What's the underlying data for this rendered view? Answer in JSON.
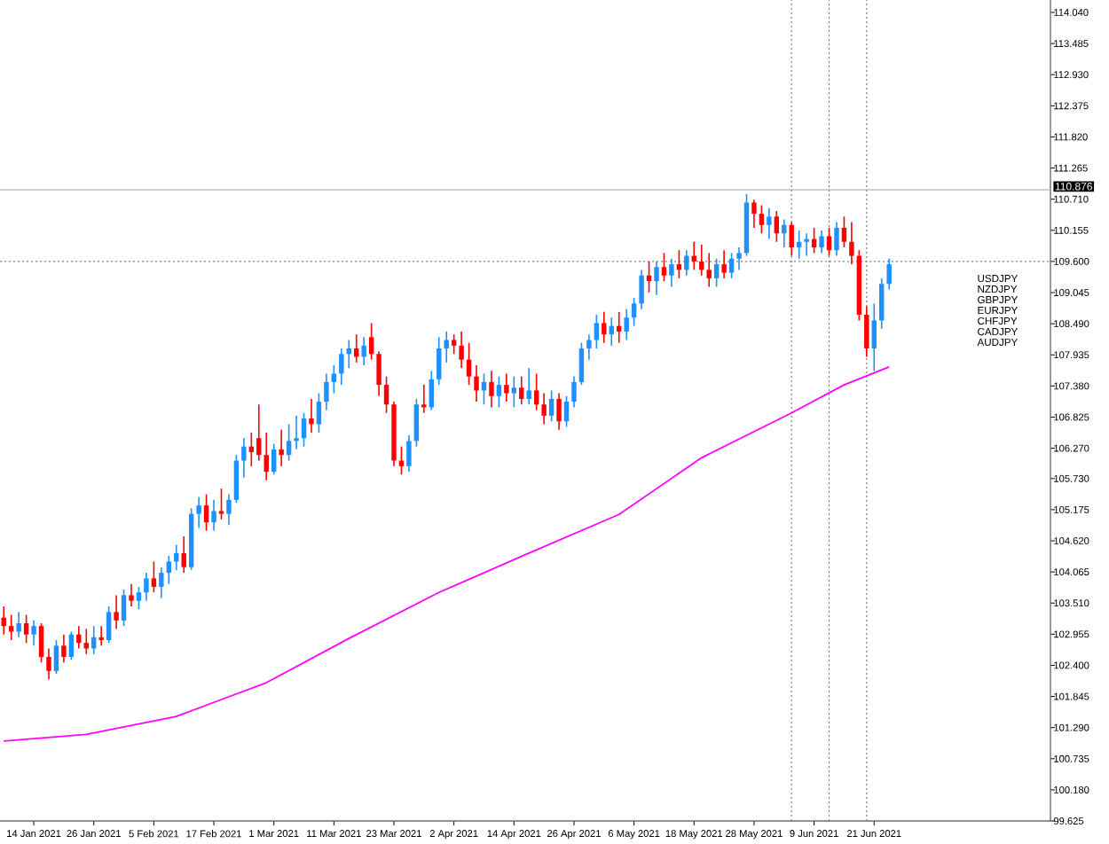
{
  "chart_data": {
    "type": "candlestick",
    "categories": [
      null,
      null,
      null,
      null,
      "14 Jan 2021",
      null,
      null,
      null,
      null,
      null,
      null,
      null,
      "26 Jan 2021",
      null,
      null,
      null,
      null,
      null,
      null,
      null,
      "5 Feb 2021",
      null,
      null,
      null,
      null,
      null,
      null,
      null,
      "17 Feb 2021",
      null,
      null,
      null,
      null,
      null,
      null,
      null,
      "1 Mar 2021",
      null,
      null,
      null,
      null,
      null,
      null,
      null,
      "11 Mar 2021",
      null,
      null,
      null,
      null,
      null,
      null,
      null,
      "23 Mar 2021",
      null,
      null,
      null,
      null,
      null,
      null,
      null,
      "2 Apr 2021",
      null,
      null,
      null,
      null,
      null,
      null,
      null,
      "14 Apr 2021",
      null,
      null,
      null,
      null,
      null,
      null,
      null,
      "26 Apr 2021",
      null,
      null,
      null,
      null,
      null,
      null,
      null,
      "6 May 2021",
      null,
      null,
      null,
      null,
      null,
      null,
      null,
      "18 May 2021",
      null,
      null,
      null,
      null,
      null,
      null,
      null,
      "28 May 2021",
      null,
      null,
      null,
      null,
      null,
      null,
      null,
      "9 Jun 2021",
      null,
      null,
      null,
      null,
      null,
      null,
      null,
      "21 Jun 2021",
      null,
      null,
      null,
      null,
      null,
      null,
      null,
      null,
      null,
      null,
      null,
      null,
      null,
      null,
      null,
      null,
      null,
      null,
      null,
      null,
      null,
      null,
      null
    ],
    "ylim": [
      99.625,
      114.26
    ],
    "yticks": [
      99.625,
      {
        "value": 100.18,
        "label": "100.180"
      },
      100.735,
      {
        "value": 101.29,
        "label": "101.290"
      },
      101.845,
      {
        "value": 102.4,
        "label": "102.400"
      },
      102.955,
      {
        "value": 103.51,
        "label": "103.510"
      },
      104.065,
      {
        "value": 104.62,
        "label": "104.620"
      },
      105.175,
      {
        "value": 105.73,
        "label": "105.730"
      },
      {
        "value": 106.27,
        "label": "106.270"
      },
      106.825,
      {
        "value": 107.38,
        "label": "107.380"
      },
      107.935,
      {
        "value": 108.49,
        "label": "108.490"
      },
      109.045,
      {
        "value": 109.6,
        "label": "109.600"
      },
      110.155,
      {
        "value": 110.71,
        "label": "110.710"
      },
      111.265,
      {
        "value": 111.82,
        "label": "111.820"
      },
      112.375,
      {
        "value": 112.93,
        "label": "112.930"
      },
      113.485,
      {
        "value": 114.04,
        "label": "114.040"
      }
    ],
    "ref_lines": [
      {
        "axis": "y",
        "value": 110.876,
        "label": "110.876",
        "color": "#b4b4b4",
        "line_style": "solid"
      },
      {
        "axis": "y",
        "value": 109.6,
        "color": "#808080",
        "line_style": "dotted"
      }
    ],
    "annotations": [
      "USDJPY",
      "NZDJPY",
      "GBPJPY",
      "EURJPY",
      "CHFJPY",
      "CADJPY",
      "AUDJPY"
    ],
    "series": [
      {
        "ohlc": [
          [
            103.25,
            103.45,
            102.95,
            103.1
          ],
          [
            103.1,
            103.3,
            102.85,
            103.0
          ],
          [
            103.0,
            103.35,
            102.9,
            103.15
          ],
          [
            103.15,
            103.3,
            102.8,
            102.95
          ],
          [
            102.95,
            103.2,
            102.75,
            103.1
          ],
          [
            103.1,
            103.15,
            102.45,
            102.55
          ],
          [
            102.55,
            102.7,
            102.15,
            102.3
          ],
          [
            102.3,
            102.85,
            102.25,
            102.75
          ],
          [
            102.75,
            102.95,
            102.45,
            102.55
          ],
          [
            102.55,
            103.0,
            102.5,
            102.95
          ],
          [
            102.95,
            103.1,
            102.7,
            102.8
          ],
          [
            102.8,
            103.05,
            102.6,
            102.7
          ],
          [
            102.7,
            103.1,
            102.6,
            102.9
          ],
          [
            102.9,
            103.1,
            102.75,
            102.85
          ],
          [
            102.85,
            103.45,
            102.8,
            103.35
          ],
          [
            103.35,
            103.65,
            103.05,
            103.2
          ],
          [
            103.2,
            103.75,
            103.1,
            103.65
          ],
          [
            103.65,
            103.85,
            103.45,
            103.55
          ],
          [
            103.55,
            103.8,
            103.4,
            103.7
          ],
          [
            103.7,
            104.05,
            103.55,
            103.95
          ],
          [
            103.95,
            104.25,
            103.7,
            103.8
          ],
          [
            103.8,
            104.15,
            103.6,
            104.05
          ],
          [
            104.05,
            104.35,
            103.85,
            104.25
          ],
          [
            104.25,
            104.55,
            104.1,
            104.4
          ],
          [
            104.4,
            104.7,
            104.05,
            104.15
          ],
          [
            104.15,
            105.2,
            104.1,
            105.1
          ],
          [
            105.1,
            105.4,
            104.85,
            105.25
          ],
          [
            105.25,
            105.45,
            104.8,
            104.95
          ],
          [
            104.95,
            105.35,
            104.8,
            105.15
          ],
          [
            105.15,
            105.55,
            105.0,
            105.1
          ],
          [
            105.1,
            105.45,
            104.9,
            105.35
          ],
          [
            105.35,
            106.15,
            105.3,
            106.05
          ],
          [
            106.05,
            106.45,
            105.75,
            106.3
          ],
          [
            106.3,
            106.55,
            105.95,
            106.2
          ],
          [
            106.45,
            107.05,
            106.05,
            106.15
          ],
          [
            106.15,
            106.55,
            105.7,
            105.85
          ],
          [
            105.85,
            106.35,
            105.8,
            106.25
          ],
          [
            106.25,
            106.6,
            105.95,
            106.15
          ],
          [
            106.15,
            106.7,
            106.05,
            106.4
          ],
          [
            106.4,
            106.85,
            106.25,
            106.45
          ],
          [
            106.45,
            106.9,
            106.3,
            106.8
          ],
          [
            106.8,
            107.15,
            106.55,
            106.7
          ],
          [
            106.7,
            107.25,
            106.55,
            107.1
          ],
          [
            107.1,
            107.6,
            106.95,
            107.45
          ],
          [
            107.45,
            107.75,
            107.25,
            107.6
          ],
          [
            107.6,
            108.05,
            107.4,
            107.95
          ],
          [
            107.95,
            108.2,
            107.7,
            108.05
          ],
          [
            108.05,
            108.3,
            107.8,
            107.9
          ],
          [
            107.9,
            108.25,
            107.75,
            108.1
          ],
          [
            108.25,
            108.5,
            107.85,
            107.95
          ],
          [
            107.95,
            108.0,
            107.2,
            107.4
          ],
          [
            107.4,
            107.55,
            106.9,
            107.05
          ],
          [
            107.05,
            107.1,
            105.95,
            106.05
          ],
          [
            106.05,
            106.3,
            105.8,
            105.95
          ],
          [
            105.95,
            106.5,
            105.85,
            106.4
          ],
          [
            106.4,
            107.15,
            106.3,
            107.05
          ],
          [
            107.05,
            107.4,
            106.9,
            107.0
          ],
          [
            107.0,
            107.65,
            106.95,
            107.5
          ],
          [
            107.5,
            108.25,
            107.4,
            108.05
          ],
          [
            108.05,
            108.35,
            107.8,
            108.2
          ],
          [
            108.2,
            108.3,
            107.95,
            108.1
          ],
          [
            108.1,
            108.35,
            107.7,
            107.85
          ],
          [
            107.85,
            108.15,
            107.4,
            107.55
          ],
          [
            107.55,
            107.75,
            107.1,
            107.3
          ],
          [
            107.3,
            107.6,
            107.05,
            107.45
          ],
          [
            107.45,
            107.65,
            107.0,
            107.2
          ],
          [
            107.2,
            107.55,
            107.0,
            107.4
          ],
          [
            107.4,
            107.6,
            107.1,
            107.25
          ],
          [
            107.25,
            107.55,
            107.0,
            107.35
          ],
          [
            107.35,
            107.55,
            107.05,
            107.15
          ],
          [
            107.15,
            107.7,
            107.05,
            107.3
          ],
          [
            107.3,
            107.6,
            106.95,
            107.05
          ],
          [
            107.05,
            107.25,
            106.7,
            106.85
          ],
          [
            106.85,
            107.3,
            106.75,
            107.15
          ],
          [
            107.15,
            107.25,
            106.6,
            106.75
          ],
          [
            106.75,
            107.2,
            106.65,
            107.1
          ],
          [
            107.1,
            107.55,
            107.0,
            107.45
          ],
          [
            107.45,
            108.15,
            107.4,
            108.05
          ],
          [
            108.05,
            108.3,
            107.85,
            108.2
          ],
          [
            108.2,
            108.65,
            108.05,
            108.5
          ],
          [
            108.5,
            108.7,
            108.15,
            108.3
          ],
          [
            108.3,
            108.6,
            108.1,
            108.45
          ],
          [
            108.45,
            108.7,
            108.15,
            108.35
          ],
          [
            108.35,
            108.75,
            108.2,
            108.6
          ],
          [
            108.6,
            108.95,
            108.45,
            108.85
          ],
          [
            108.85,
            109.45,
            108.75,
            109.35
          ],
          [
            109.35,
            109.6,
            109.05,
            109.25
          ],
          [
            109.25,
            109.6,
            109.0,
            109.5
          ],
          [
            109.5,
            109.75,
            109.25,
            109.35
          ],
          [
            109.35,
            109.65,
            109.15,
            109.55
          ],
          [
            109.55,
            109.8,
            109.3,
            109.45
          ],
          [
            109.45,
            109.8,
            109.35,
            109.7
          ],
          [
            109.7,
            109.95,
            109.45,
            109.6
          ],
          [
            109.6,
            109.9,
            109.35,
            109.45
          ],
          [
            109.45,
            109.75,
            109.15,
            109.3
          ],
          [
            109.3,
            109.65,
            109.15,
            109.55
          ],
          [
            109.55,
            109.8,
            109.3,
            109.4
          ],
          [
            109.4,
            109.75,
            109.3,
            109.65
          ],
          [
            109.65,
            109.85,
            109.45,
            109.75
          ],
          [
            109.75,
            110.8,
            109.7,
            110.65
          ],
          [
            110.65,
            110.7,
            110.2,
            110.45
          ],
          [
            110.45,
            110.6,
            110.1,
            110.25
          ],
          [
            110.25,
            110.55,
            110.0,
            110.4
          ],
          [
            110.4,
            110.5,
            109.95,
            110.1
          ],
          [
            110.1,
            110.35,
            109.85,
            110.25
          ],
          [
            110.25,
            110.3,
            109.7,
            109.85
          ],
          [
            109.85,
            110.15,
            109.65,
            109.95
          ],
          [
            109.95,
            110.1,
            109.7,
            110.0
          ],
          [
            110.0,
            110.2,
            109.75,
            109.85
          ],
          [
            109.85,
            110.15,
            109.75,
            110.05
          ],
          [
            110.05,
            110.2,
            109.7,
            109.8
          ],
          [
            109.8,
            110.3,
            109.7,
            110.2
          ],
          [
            110.2,
            110.4,
            109.85,
            109.95
          ],
          [
            109.95,
            110.3,
            109.55,
            109.7
          ],
          [
            109.7,
            109.8,
            108.55,
            108.65
          ],
          [
            108.65,
            108.8,
            107.9,
            108.05
          ],
          [
            108.05,
            108.85,
            107.65,
            108.55
          ],
          [
            108.55,
            109.3,
            108.4,
            109.2
          ],
          [
            109.2,
            109.65,
            109.1,
            109.55
          ],
          null,
          null,
          null,
          null,
          null,
          null,
          null,
          null,
          null,
          null,
          null,
          null,
          null,
          null,
          null,
          null,
          null,
          null,
          null,
          null,
          null
        ],
        "colors": [
          "#ff0000",
          "#ff0000",
          "#1e90ff",
          "#ff0000",
          "#1e90ff",
          "#ff0000",
          "#ff0000",
          "#1e90ff",
          "#ff0000",
          "#1e90ff",
          "#ff0000",
          "#ff0000",
          "#1e90ff",
          "#ff0000",
          "#1e90ff",
          "#ff0000",
          "#1e90ff",
          "#ff0000",
          "#1e90ff",
          "#1e90ff",
          "#ff0000",
          "#1e90ff",
          "#1e90ff",
          "#1e90ff",
          "#ff0000",
          "#1e90ff",
          "#1e90ff",
          "#ff0000",
          "#1e90ff",
          "#ff0000",
          "#1e90ff",
          "#1e90ff",
          "#1e90ff",
          "#ff0000",
          "#ff0000",
          "#ff0000",
          "#1e90ff",
          "#ff0000",
          "#1e90ff",
          "#1e90ff",
          "#1e90ff",
          "#ff0000",
          "#1e90ff",
          "#1e90ff",
          "#1e90ff",
          "#1e90ff",
          "#1e90ff",
          "#ff0000",
          "#1e90ff",
          "#ff0000",
          "#ff0000",
          "#ff0000",
          "#ff0000",
          "#ff0000",
          "#1e90ff",
          "#1e90ff",
          "#ff0000",
          "#1e90ff",
          "#1e90ff",
          "#1e90ff",
          "#ff0000",
          "#ff0000",
          "#ff0000",
          "#ff0000",
          "#1e90ff",
          "#ff0000",
          "#1e90ff",
          "#ff0000",
          "#1e90ff",
          "#ff0000",
          "#1e90ff",
          "#ff0000",
          "#ff0000",
          "#1e90ff",
          "#ff0000",
          "#1e90ff",
          "#1e90ff",
          "#1e90ff",
          "#1e90ff",
          "#1e90ff",
          "#ff0000",
          "#1e90ff",
          "#ff0000",
          "#1e90ff",
          "#1e90ff",
          "#1e90ff",
          "#ff0000",
          "#1e90ff",
          "#ff0000",
          "#1e90ff",
          "#ff0000",
          "#1e90ff",
          "#ff0000",
          "#ff0000",
          "#ff0000",
          "#1e90ff",
          "#ff0000",
          "#1e90ff",
          "#1e90ff",
          "#1e90ff",
          "#ff0000",
          "#ff0000",
          "#1e90ff",
          "#ff0000",
          "#1e90ff",
          "#ff0000",
          "#1e90ff",
          "#1e90ff",
          "#ff0000",
          "#1e90ff",
          "#ff0000",
          "#1e90ff",
          "#ff0000",
          "#ff0000",
          "#ff0000",
          "#ff0000",
          "#1e90ff",
          "#1e90ff",
          "#1e90ff",
          null,
          null,
          null,
          null,
          null,
          null,
          null,
          null,
          null,
          null,
          null,
          null,
          null,
          null,
          null,
          null,
          null,
          null,
          null,
          null,
          null
        ]
      },
      {
        "type": "line",
        "color": "#ff00ff",
        "values": [
          101.05,
          null,
          null,
          null,
          null,
          null,
          null,
          null,
          null,
          null,
          null,
          101.17,
          null,
          null,
          null,
          null,
          null,
          null,
          null,
          null,
          null,
          null,
          null,
          101.49,
          null,
          null,
          null,
          null,
          null,
          null,
          null,
          null,
          null,
          null,
          null,
          102.09,
          null,
          null,
          null,
          null,
          null,
          null,
          null,
          null,
          null,
          null,
          102.88,
          null,
          null,
          null,
          null,
          null,
          null,
          null,
          null,
          null,
          null,
          null,
          103.7,
          null,
          null,
          null,
          null,
          null,
          null,
          null,
          null,
          null,
          null,
          null,
          104.4,
          null,
          null,
          null,
          null,
          null,
          null,
          null,
          null,
          null,
          null,
          null,
          105.09,
          null,
          null,
          null,
          null,
          null,
          null,
          null,
          null,
          null,
          null,
          106.1,
          null,
          null,
          null,
          null,
          null,
          null,
          null,
          null,
          null,
          null,
          null,
          106.9,
          null,
          null,
          null,
          null,
          null,
          null,
          107.4,
          null,
          null,
          null,
          null,
          null,
          107.72,
          null,
          null,
          null,
          null,
          null,
          null,
          null,
          null,
          null,
          null,
          null,
          null,
          null,
          null,
          null,
          null,
          null,
          null,
          null,
          null,
          null
        ]
      }
    ]
  }
}
